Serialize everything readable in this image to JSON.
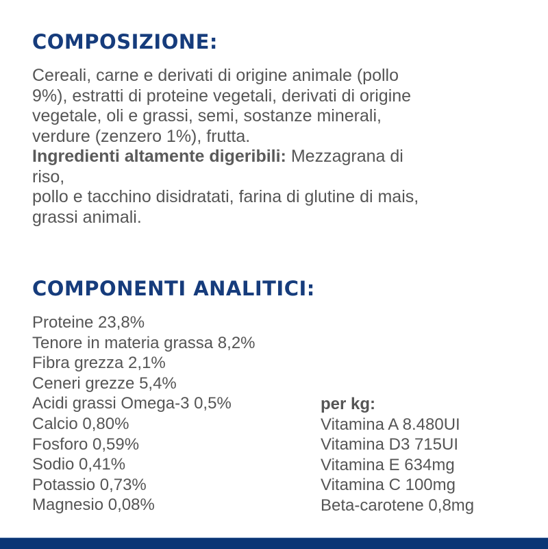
{
  "composition": {
    "title": "COMPOSIZIONE:",
    "lines": [
      "Cereali, carne e derivati di origine animale (pollo",
      "9%), estratti di proteine vegetali, derivati di origine",
      "vegetale, oli e grassi, semi, sostanze minerali,",
      "verdure (zenzero 1%), frutta."
    ],
    "highlight_label": "Ingredienti altamente digeribili:",
    "highlight_text_1": " Mezzagrana di",
    "highlight_lines": [
      "riso,",
      "pollo e tacchino disidratati, farina di glutine di mais,",
      "grassi animali."
    ]
  },
  "analysis": {
    "title": "COMPONENTI ANALITICI:",
    "left": [
      "Proteine 23,8%",
      "Tenore in materia grassa 8,2%",
      "Fibra grezza 2,1%",
      "Ceneri grezze 5,4%",
      "Acidi grassi Omega-3 0,5%",
      "Calcio 0,80%",
      "Fosforo 0,59%",
      "Sodio 0,41%",
      "Potassio 0,73%",
      "Magnesio 0,08%"
    ],
    "per_kg_label": "per kg:",
    "right": [
      "Vitamina A 8.480UI",
      "Vitamina D3 715UI",
      "Vitamina E 634mg",
      "Vitamina C 100mg",
      "Beta-carotene 0,8mg"
    ]
  },
  "colors": {
    "heading": "#163c7c",
    "text": "#555555",
    "footer_bar": "#0a3575"
  }
}
